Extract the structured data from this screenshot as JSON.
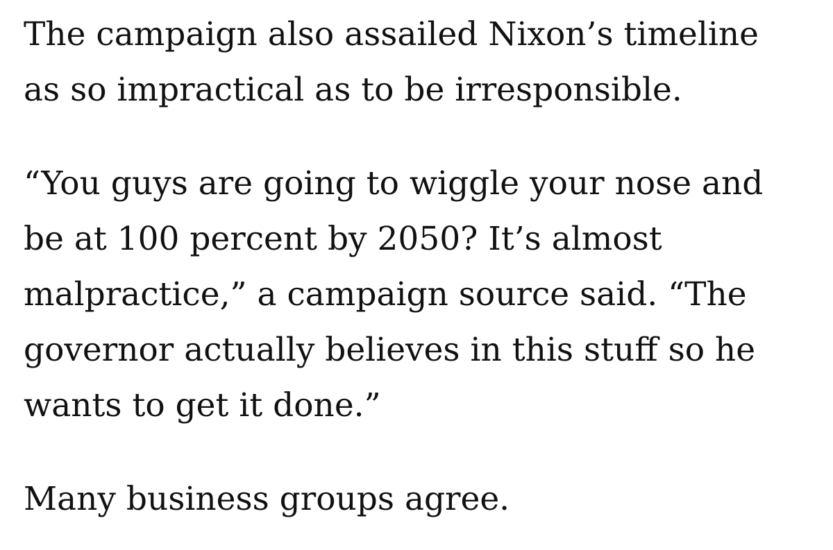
{
  "article": {
    "paragraphs": [
      {
        "lines": [
          "The campaign also assailed Nixon’s timeline",
          "as so impractical as to be irresponsible."
        ]
      },
      {
        "lines": [
          "“You guys are going to wiggle your nose and",
          "be at 100 percent by 2050? It’s almost",
          "malpractice,” a campaign source said. “The",
          "governor actually believes in this stuff so he",
          "wants to get it done.”"
        ]
      },
      {
        "lines": [
          "Many business groups agree."
        ]
      }
    ]
  }
}
